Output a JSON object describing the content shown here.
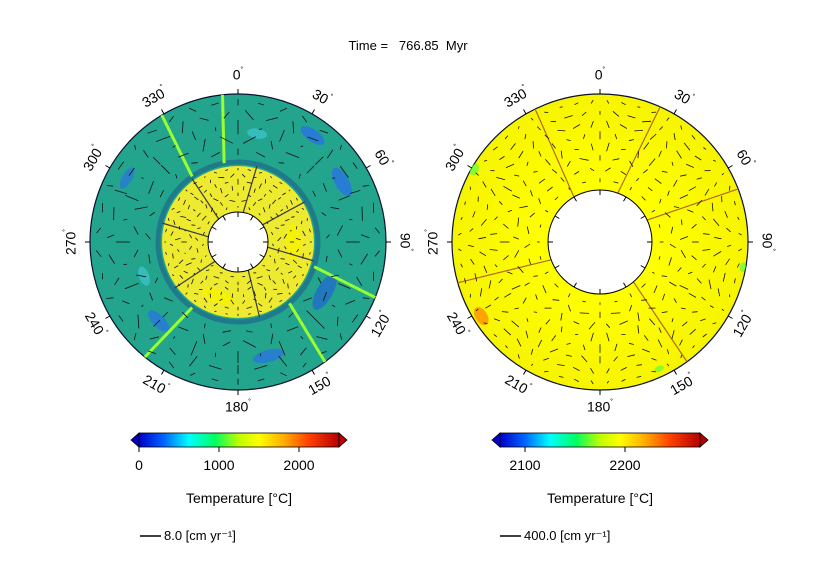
{
  "figure": {
    "title": "Time =   766.85  Myr"
  },
  "panels": [
    {
      "id": "left",
      "angle_labels": [
        "0",
        "30",
        "60",
        "90",
        "120",
        "150",
        "180",
        "210",
        "240",
        "270",
        "300",
        "330"
      ],
      "colorbar": {
        "label": "Temperature [°C]",
        "ticks": [
          "0",
          "1000",
          "2000"
        ],
        "min": 0,
        "max": 2500
      },
      "velocity_scale": "8.0 [cm yr⁻¹]"
    },
    {
      "id": "right",
      "angle_labels": [
        "0",
        "30",
        "60",
        "90",
        "120",
        "150",
        "180",
        "210",
        "240",
        "270",
        "300",
        "330"
      ],
      "colorbar": {
        "label": "Temperature [°C]",
        "ticks": [
          "2100",
          "2200"
        ],
        "min": 2075,
        "max": 2275
      },
      "velocity_scale": "400.0 [cm yr⁻¹]"
    }
  ],
  "colors": {
    "colormap": [
      "#0000c8",
      "#0080ff",
      "#00ffff",
      "#00ff80",
      "#80ff00",
      "#ffff00",
      "#ffc000",
      "#ff8000",
      "#ff2000",
      "#b40000"
    ],
    "left_outer_fill": "#25a88c",
    "left_inner_fill": "#f0ec2c",
    "right_fill": "#fbf500",
    "arrow": "#111111"
  }
}
